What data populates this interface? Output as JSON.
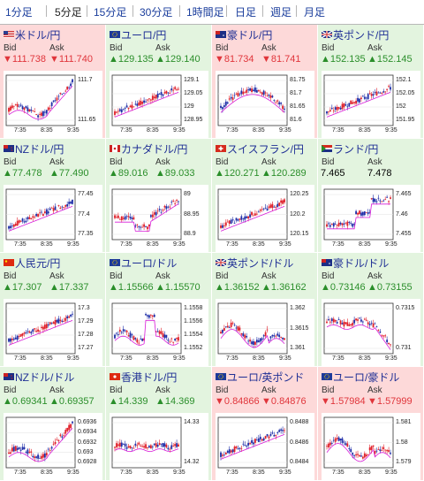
{
  "tabs": [
    {
      "label": "1分足",
      "active": false
    },
    {
      "label": "5分足",
      "active": true
    },
    {
      "label": "15分足",
      "active": false
    },
    {
      "label": "30分足",
      "active": false
    },
    {
      "label": "1時間足",
      "active": false
    },
    {
      "label": "日足",
      "active": false
    },
    {
      "label": "週足",
      "active": false
    },
    {
      "label": "月足",
      "active": false
    }
  ],
  "labels": {
    "bid": "Bid",
    "ask": "Ask"
  },
  "x_ticks": [
    "7:35",
    "8:35",
    "9:35"
  ],
  "colors": {
    "up_text": "#2a8e2a",
    "down_text": "#e0353b",
    "up_bg": "#e3f4df",
    "down_bg": "#fdd9d9",
    "candle_up": "#e0202a",
    "candle_down": "#1f2ea8",
    "ma_line": "#d81bd8",
    "pair_text": "#1f2f95"
  },
  "pairs": [
    {
      "name": "米ドル/円",
      "flag": "us-flag-icon",
      "dir": "down",
      "bid": "111.738",
      "ask": "111.740",
      "y_ticks": [
        "111.7",
        "111.65"
      ],
      "trend": "rising-end"
    },
    {
      "name": "ユーロ/円",
      "flag": "eu-flag-icon",
      "dir": "up",
      "bid": "129.135",
      "ask": "129.140",
      "y_ticks": [
        "129.1",
        "129.05",
        "129",
        "128.95"
      ],
      "trend": "rising"
    },
    {
      "name": "豪ドル/円",
      "flag": "au-flag-icon",
      "dir": "down",
      "bid": "81.734",
      "ask": "81.741",
      "y_ticks": [
        "81.75",
        "81.7",
        "81.65",
        "81.6"
      ],
      "trend": "hump"
    },
    {
      "name": "英ポンド/円",
      "flag": "gb-flag-icon",
      "dir": "up",
      "bid": "152.135",
      "ask": "152.145",
      "y_ticks": [
        "152.1",
        "152.05",
        "152",
        "151.95"
      ],
      "trend": "rising"
    },
    {
      "name": "NZドル/円",
      "flag": "nz-flag-icon",
      "dir": "up",
      "bid": "77.478",
      "ask": "77.490",
      "y_ticks": [
        "77.45",
        "77.4",
        "77.35"
      ],
      "trend": "rising"
    },
    {
      "name": "カナダドル/円",
      "flag": "ca-flag-icon",
      "dir": "up",
      "bid": "89.016",
      "ask": "89.033",
      "y_ticks": [
        "89",
        "88.95",
        "88.9"
      ],
      "trend": "dip-recover"
    },
    {
      "name": "スイスフラン/円",
      "flag": "ch-flag-icon",
      "dir": "up",
      "bid": "120.271",
      "ask": "120.289",
      "y_ticks": [
        "120.25",
        "120.2",
        "120.15"
      ],
      "trend": "rising"
    },
    {
      "name": "ランド/円",
      "flag": "za-flag-icon",
      "dir": "none",
      "bid": "7.465",
      "ask": "7.478",
      "y_ticks": [
        "7.465",
        "7.46",
        "7.455"
      ],
      "trend": "step-up"
    },
    {
      "name": "人民元/円",
      "flag": "cn-flag-icon",
      "dir": "up",
      "bid": "17.307",
      "ask": "17.337",
      "y_ticks": [
        "17.3",
        "17.29",
        "17.28",
        "17.27"
      ],
      "trend": "rising"
    },
    {
      "name": "ユーロ/ドル",
      "flag": "eu-flag-icon",
      "dir": "up",
      "bid": "1.15566",
      "ask": "1.15570",
      "y_ticks": [
        "1.1558",
        "1.1556",
        "1.1554",
        "1.1552"
      ],
      "trend": "spike-mid"
    },
    {
      "name": "英ポンド/ドル",
      "flag": "gb-flag-icon",
      "dir": "up",
      "bid": "1.36152",
      "ask": "1.36162",
      "y_ticks": [
        "1.362",
        "1.3615",
        "1.361"
      ],
      "trend": "wave"
    },
    {
      "name": "豪ドル/ドル",
      "flag": "au-flag-icon",
      "dir": "up",
      "bid": "0.73146",
      "ask": "0.73155",
      "y_ticks": [
        "0.7315",
        "0.731"
      ],
      "trend": "drop-end"
    },
    {
      "name": "NZドル/ドル",
      "flag": "nz-flag-icon",
      "dir": "up",
      "bid": "0.69341",
      "ask": "0.69357",
      "y_ticks": [
        "0.6936",
        "0.6934",
        "0.6932",
        "0.693",
        "0.6928"
      ],
      "trend": "rising-end"
    },
    {
      "name": "香港ドル/円",
      "flag": "hk-flag-icon",
      "dir": "up",
      "bid": "14.339",
      "ask": "14.369",
      "y_ticks": [
        "14.33",
        "14.32"
      ],
      "trend": "flat"
    },
    {
      "name": "ユーロ/英ポンド",
      "flag": "eu-flag-icon",
      "dir": "down",
      "bid": "0.84866",
      "ask": "0.84876",
      "y_ticks": [
        "0.8488",
        "0.8486",
        "0.8484"
      ],
      "trend": "rising"
    },
    {
      "name": "ユーロ/豪ドル",
      "flag": "eu-flag-icon",
      "dir": "down",
      "bid": "1.57984",
      "ask": "1.57999",
      "y_ticks": [
        "1.581",
        "1.58",
        "1.579"
      ],
      "trend": "wave"
    }
  ]
}
